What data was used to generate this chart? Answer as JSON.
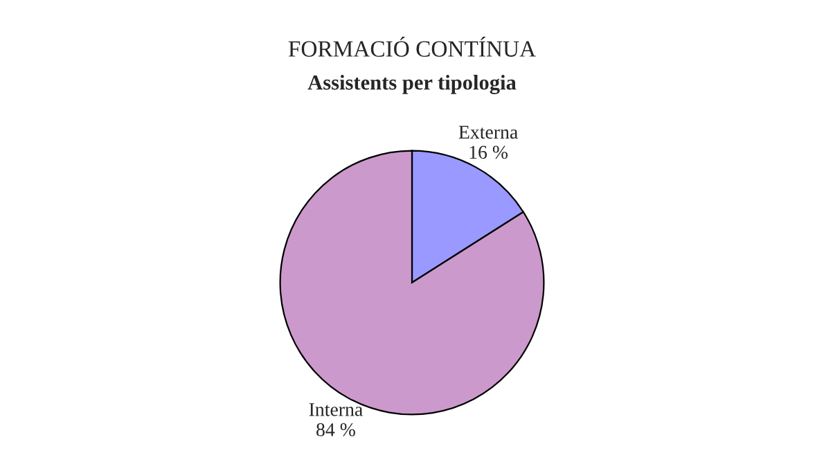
{
  "chart_data": {
    "type": "pie",
    "title": "FORMACIÓ CONTÍNUA",
    "subtitle": "Assistents per tipologia",
    "categories": [
      "Externa",
      "Interna"
    ],
    "values": [
      16,
      84
    ],
    "value_labels": [
      "16 %",
      "84 %"
    ],
    "colors": [
      "#9999ff",
      "#cc99cc"
    ]
  }
}
